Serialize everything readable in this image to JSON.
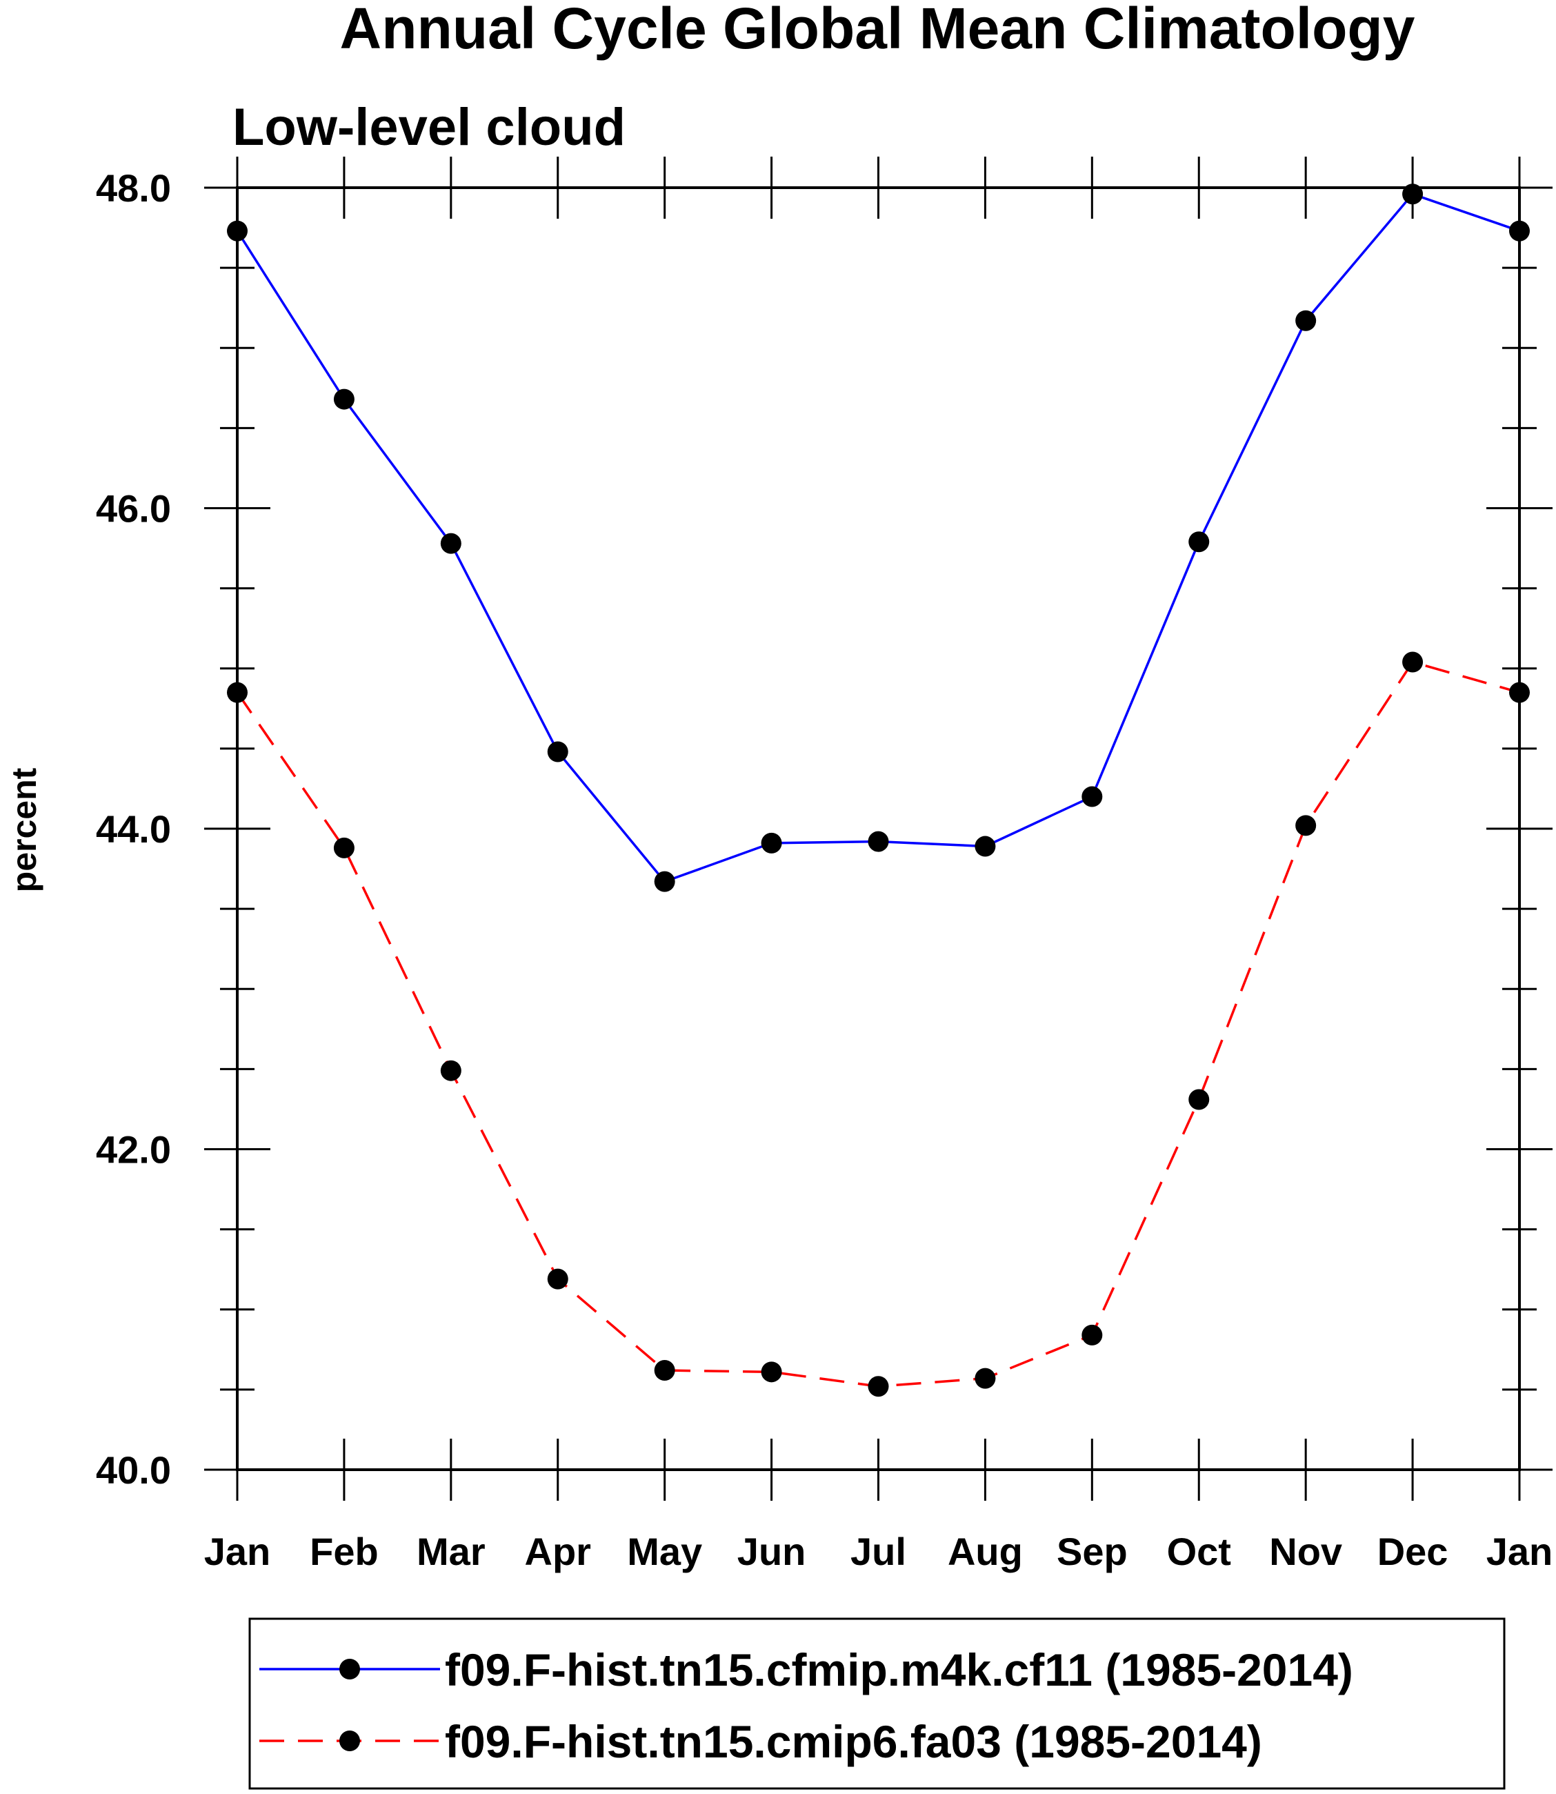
{
  "chart_data": {
    "type": "line",
    "title": "Annual Cycle Global Mean Climatology",
    "subtitle": "Low-level cloud",
    "xlabel": "",
    "ylabel": "percent",
    "categories": [
      "Jan",
      "Feb",
      "Mar",
      "Apr",
      "May",
      "Jun",
      "Jul",
      "Aug",
      "Sep",
      "Oct",
      "Nov",
      "Dec",
      "Jan"
    ],
    "ylim": [
      40.0,
      48.0
    ],
    "yticks": [
      "40.0",
      "42.0",
      "44.0",
      "46.0",
      "48.0"
    ],
    "grid": false,
    "legend_position": "bottom",
    "series": [
      {
        "name": "f09.F-hist.tn15.cfmip.m4k.cf11 (1985-2014)",
        "color": "#0000ff",
        "dash": "solid",
        "marker": "filled-circle",
        "values": [
          47.73,
          46.68,
          45.78,
          44.48,
          43.67,
          43.91,
          43.92,
          43.89,
          44.2,
          45.79,
          47.17,
          47.96,
          47.73
        ]
      },
      {
        "name": "f09.F-hist.tn15.cmip6.fa03 (1985-2014)",
        "color": "#ff0000",
        "dash": "dashed",
        "marker": "filled-circle",
        "values": [
          44.85,
          43.88,
          42.49,
          41.19,
          40.62,
          40.61,
          40.52,
          40.57,
          40.84,
          42.31,
          44.02,
          45.04,
          44.85
        ]
      }
    ]
  }
}
